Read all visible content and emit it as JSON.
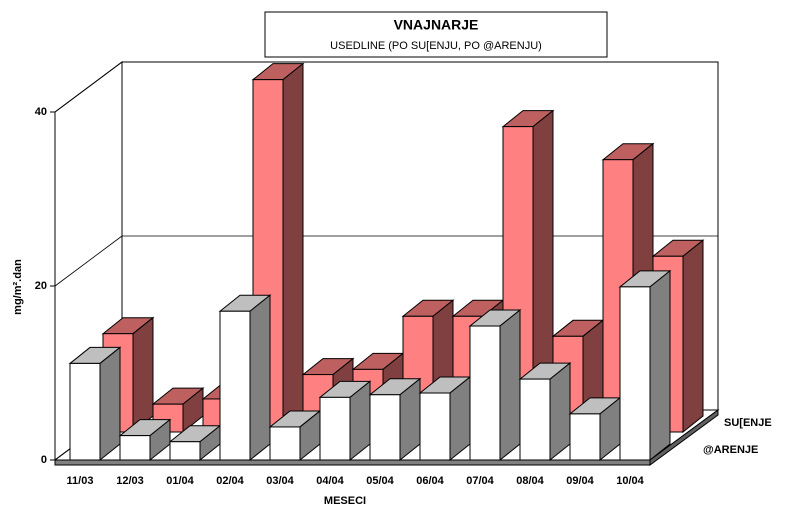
{
  "chart_data": {
    "type": "bar3d",
    "title": "VNAJNARJE",
    "subtitle": "USEDLINE (PO SU[ENJU, PO @ARENJU)",
    "x_label": "MESECI",
    "y_label": "mg/m².dan",
    "categories": [
      "11/03",
      "12/03",
      "01/04",
      "02/04",
      "03/04",
      "04/04",
      "05/04",
      "06/04",
      "07/04",
      "08/04",
      "09/04",
      "10/04"
    ],
    "series": [
      {
        "name": "SU[ENJE",
        "color": "#ff8080",
        "values": [
          11.3,
          3.2,
          3.8,
          40.5,
          6.6,
          7.2,
          13.3,
          13.3,
          35.1,
          11,
          31.3,
          20.2
        ]
      },
      {
        "name": "@ARENJE",
        "color": "#ffffff",
        "values": [
          11.1,
          2.8,
          2.1,
          17.1,
          3.8,
          7.2,
          7.5,
          7.7,
          15.4,
          9.3,
          5.3,
          19.9
        ]
      }
    ],
    "ylim": [
      0,
      40
    ],
    "yticks": [
      0,
      20,
      40
    ],
    "grid": true
  }
}
